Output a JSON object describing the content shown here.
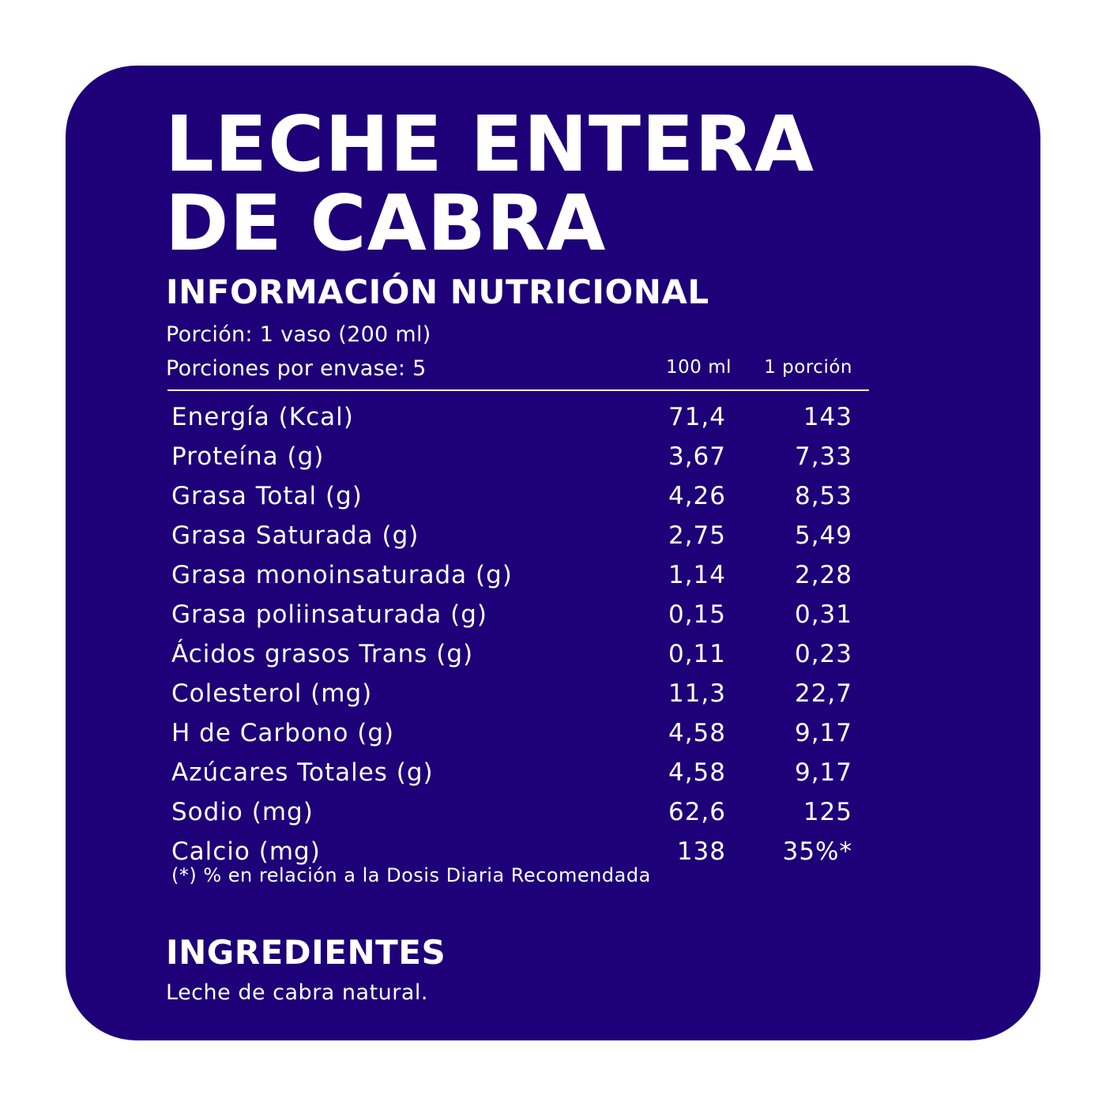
{
  "colors": {
    "panel_background": "#1e0078",
    "text": "#ffffff",
    "page_background": "#ffffff"
  },
  "title": {
    "line1": "LECHE ENTERA",
    "line2": "DE CABRA"
  },
  "nutrition": {
    "heading": "INFORMACIÓN NUTRICIONAL",
    "portion": "Porción: 1 vaso (200 ml)",
    "servings": "Porciones por envase: 5",
    "columns": [
      "100 ml",
      "1 porción"
    ],
    "rows": [
      {
        "name": "Energía (Kcal)",
        "per_100ml": "71,4",
        "per_portion": "143"
      },
      {
        "name": "Proteína (g)",
        "per_100ml": "3,67",
        "per_portion": "7,33"
      },
      {
        "name": "Grasa Total (g)",
        "per_100ml": "4,26",
        "per_portion": "8,53"
      },
      {
        "name": "Grasa Saturada (g)",
        "per_100ml": "2,75",
        "per_portion": "5,49"
      },
      {
        "name": "Grasa monoinsaturada (g)",
        "per_100ml": "1,14",
        "per_portion": "2,28"
      },
      {
        "name": "Grasa poliinsaturada (g)",
        "per_100ml": "0,15",
        "per_portion": "0,31"
      },
      {
        "name": "Ácidos grasos Trans (g)",
        "per_100ml": "0,11",
        "per_portion": "0,23"
      },
      {
        "name": "Colesterol (mg)",
        "per_100ml": "11,3",
        "per_portion": "22,7"
      },
      {
        "name": "H de Carbono (g)",
        "per_100ml": "4,58",
        "per_portion": "9,17"
      },
      {
        "name": "Azúcares Totales (g)",
        "per_100ml": "4,58",
        "per_portion": "9,17"
      },
      {
        "name": "Sodio (mg)",
        "per_100ml": "62,6",
        "per_portion": "125"
      },
      {
        "name": "Calcio (mg)",
        "per_100ml": "138",
        "per_portion": "35%*"
      }
    ],
    "footnote": "(*) % en relación a la Dosis Diaria Recomendada"
  },
  "ingredients": {
    "heading": "INGREDIENTES",
    "text": "Leche de cabra natural."
  }
}
